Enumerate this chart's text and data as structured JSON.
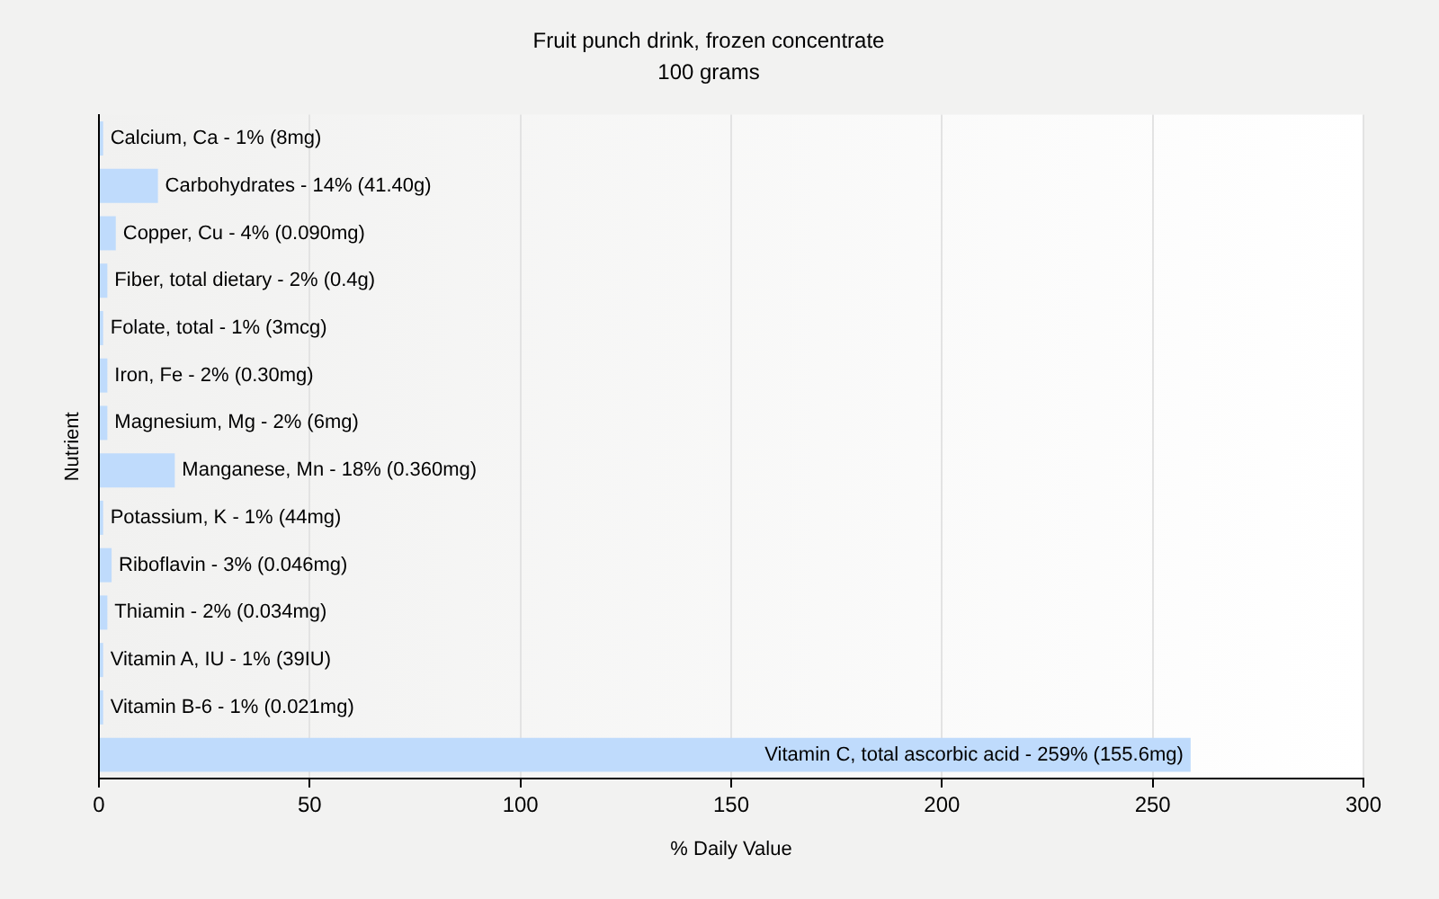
{
  "chart_data": {
    "type": "bar",
    "orientation": "horizontal",
    "title": "Fruit punch drink, frozen concentrate",
    "subtitle": "100 grams",
    "xlabel": "% Daily Value",
    "ylabel": "Nutrient",
    "categories": [
      "Calcium, Ca - 1% (8mg)",
      "Carbohydrates - 14% (41.40g)",
      "Copper, Cu - 4% (0.090mg)",
      "Fiber, total dietary - 2% (0.4g)",
      "Folate, total - 1% (3mcg)",
      "Iron, Fe - 2% (0.30mg)",
      "Magnesium, Mg - 2% (6mg)",
      "Manganese, Mn - 18% (0.360mg)",
      "Potassium, K - 1% (44mg)",
      "Riboflavin - 3% (0.046mg)",
      "Thiamin - 2% (0.034mg)",
      "Vitamin A, IU - 1% (39IU)",
      "Vitamin B-6 - 1% (0.021mg)",
      "Vitamin C, total ascorbic acid - 259% (155.6mg)"
    ],
    "values": [
      1,
      14,
      4,
      2,
      1,
      2,
      2,
      18,
      1,
      3,
      2,
      1,
      1,
      259
    ],
    "color": "#bfdbfc",
    "xlim": [
      0,
      300
    ],
    "xticks": [
      0,
      50,
      100,
      150,
      200,
      250,
      300
    ],
    "grid": "x"
  }
}
